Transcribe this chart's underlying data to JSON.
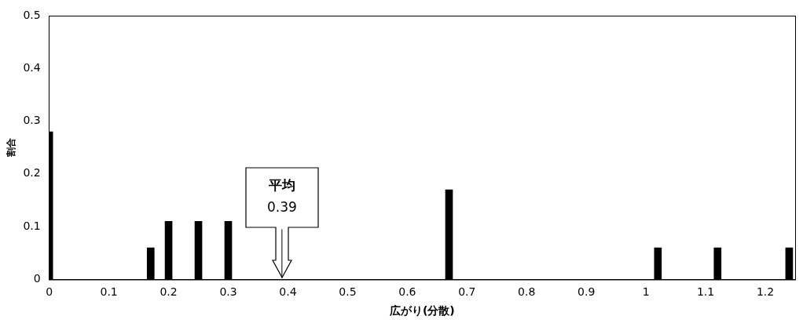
{
  "chart_data": {
    "type": "bar",
    "xlabel": "広がり(分散)",
    "ylabel": "割合",
    "x": [
      0,
      0.17,
      0.2,
      0.25,
      0.3,
      0.67,
      1.02,
      1.12,
      1.24
    ],
    "values": [
      0.28,
      0.06,
      0.11,
      0.11,
      0.11,
      0.17,
      0.06,
      0.06,
      0.06
    ],
    "color": "#000000",
    "xlim": [
      0,
      1.25
    ],
    "xticks": [
      0,
      0.1,
      0.2,
      0.3,
      0.4,
      0.5,
      0.6,
      0.7,
      0.8,
      0.9,
      1,
      1.1,
      1.2
    ],
    "ylim": [
      0,
      0.5
    ],
    "yticks": [
      0,
      0.1,
      0.2,
      0.3,
      0.4,
      0.5
    ],
    "grid": false,
    "legend": false,
    "ref_lines": [
      {
        "axis": "x",
        "value": 0.39,
        "label": "平均\n0.39"
      }
    ]
  }
}
